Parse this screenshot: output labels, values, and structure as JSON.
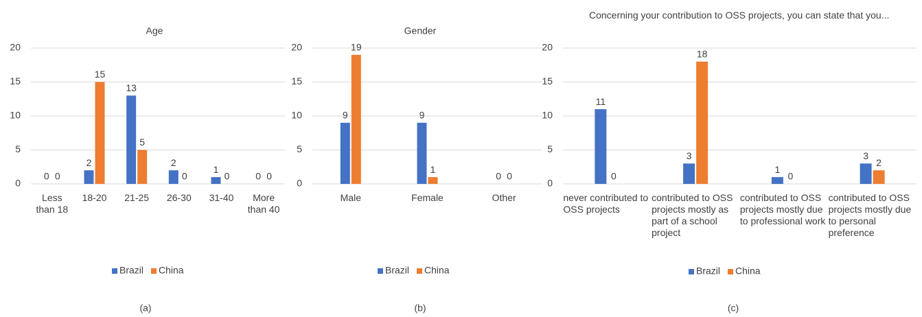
{
  "chart_data": [
    {
      "type": "bar",
      "title": "Age",
      "caption": "(a)",
      "categories": [
        "Less than 18",
        "18-20",
        "21-25",
        "26-30",
        "31-40",
        "More than 40"
      ],
      "series": [
        {
          "name": "Brazil",
          "color": "#4472c4",
          "values": [
            0,
            2,
            13,
            2,
            1,
            0
          ]
        },
        {
          "name": "China",
          "color": "#ed7d31",
          "values": [
            0,
            15,
            5,
            0,
            0,
            0
          ]
        }
      ],
      "ylim": [
        0,
        20
      ],
      "yticks": [
        0,
        5,
        10,
        15,
        20
      ],
      "grid": true
    },
    {
      "type": "bar",
      "title": "Gender",
      "caption": "(b)",
      "categories": [
        "Male",
        "Female",
        "Other"
      ],
      "series": [
        {
          "name": "Brazil",
          "color": "#4472c4",
          "values": [
            9,
            9,
            0
          ]
        },
        {
          "name": "China",
          "color": "#ed7d31",
          "values": [
            19,
            1,
            0
          ]
        }
      ],
      "ylim": [
        0,
        20
      ],
      "yticks": [
        0,
        5,
        10,
        15,
        20
      ],
      "grid": true
    },
    {
      "type": "bar",
      "title": "Concerning your contribution to OSS projects, you can state that you...",
      "caption": "(c)",
      "categories": [
        "never contributed to OSS projects",
        "contributed to OSS projects mostly as part of a school project",
        "contributed to OSS projects mostly due to professional work",
        "contributed to OSS projects mostly due to personal preference"
      ],
      "series": [
        {
          "name": "Brazil",
          "color": "#4472c4",
          "values": [
            11,
            3,
            1,
            3
          ]
        },
        {
          "name": "China",
          "color": "#ed7d31",
          "values": [
            0,
            18,
            0,
            2
          ]
        }
      ],
      "ylim": [
        0,
        20
      ],
      "yticks": [
        0,
        5,
        10,
        15,
        20
      ],
      "grid": true
    }
  ]
}
